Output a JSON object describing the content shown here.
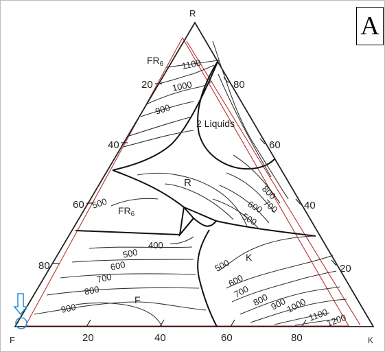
{
  "panel_label": "A",
  "vertices": {
    "top": "R",
    "left": "F",
    "right": "K"
  },
  "edge_ticks": {
    "left": [
      "20",
      "40",
      "60",
      "80"
    ],
    "right": [
      "80",
      "60",
      "40",
      "20"
    ],
    "bottom": [
      "20",
      "40",
      "60",
      "80"
    ]
  },
  "phase_labels": {
    "fr6_top": "FR",
    "fr6_top_sub": "6",
    "two_liquids": "2 Liquids",
    "r_field": "R",
    "fr6_mid": "FR",
    "fr6_mid_sub": "6",
    "k_field": "K",
    "f_field": "F"
  },
  "isotherms": {
    "t1100_top": "1100",
    "t1000_top": "1000",
    "t900_top": "900",
    "t500_left": "500",
    "t400": "400",
    "t500_f": "500",
    "t600_f": "600",
    "t700_f": "700",
    "t800_f": "800",
    "t900_f": "900",
    "t800_r": "800",
    "t700_r": "700",
    "t600_r": "600",
    "t500_r": "500",
    "t500_k": "500",
    "t600_k": "600",
    "t700_k": "700",
    "t800_k": "800",
    "t900_k": "900",
    "t1000_k": "1000",
    "t1100_k": "1100",
    "t1200_k": "1200"
  },
  "colors": {
    "overlay_red": "#b8322e",
    "marker_blue": "#2a8fd6",
    "ink": "#222222"
  }
}
